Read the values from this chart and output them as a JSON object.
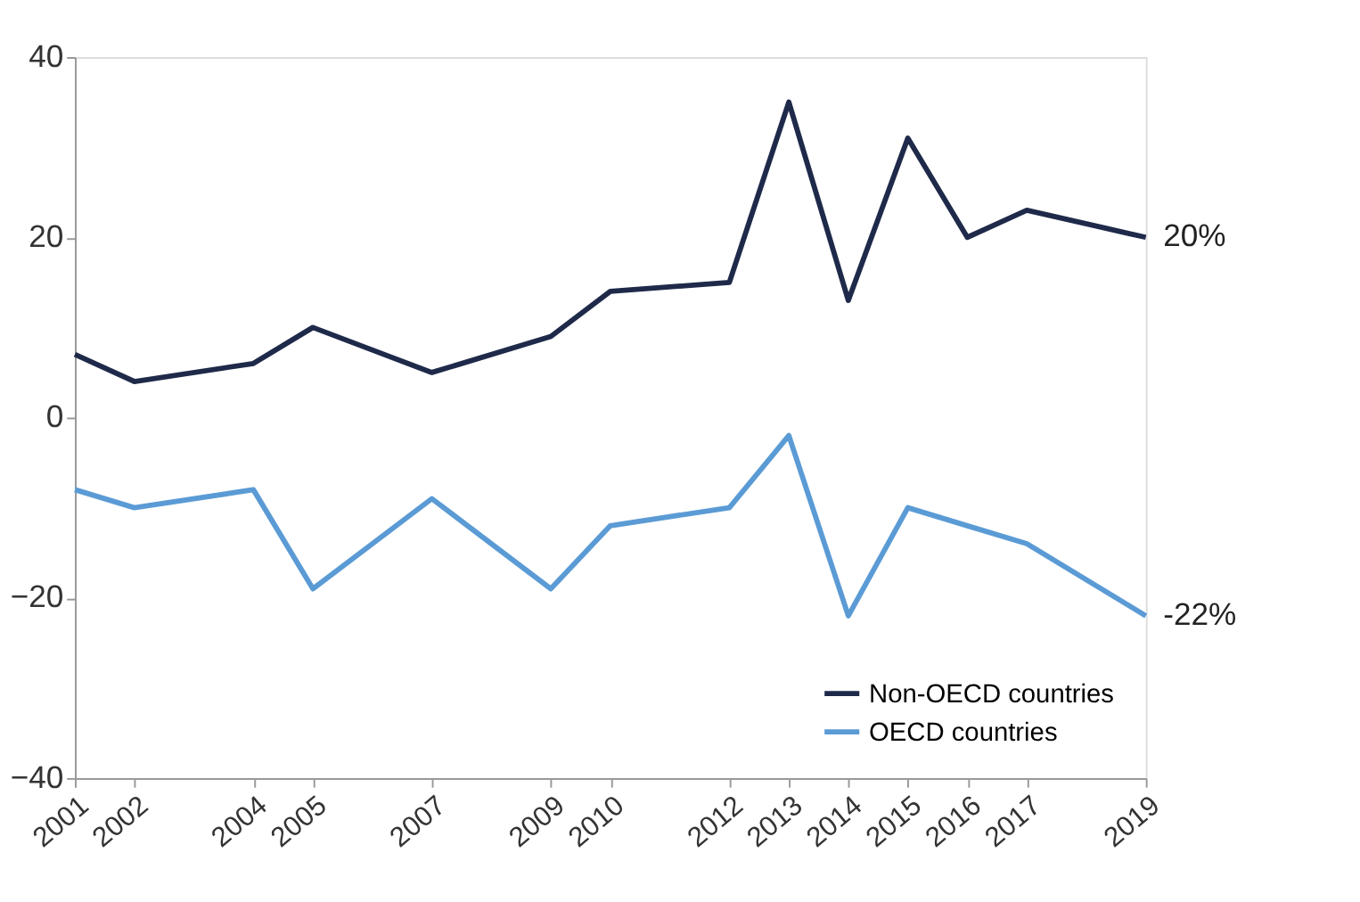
{
  "chart_data": {
    "type": "line",
    "x": [
      2001,
      2002,
      2004,
      2005,
      2007,
      2009,
      2010,
      2012,
      2013,
      2014,
      2015,
      2016,
      2017,
      2019
    ],
    "series": [
      {
        "name": "Non-OECD countries",
        "color": "#1f2a4a",
        "values": [
          7,
          4,
          6,
          10,
          5,
          9,
          14,
          15,
          35,
          13,
          31,
          20,
          23,
          20
        ]
      },
      {
        "name": "OECD countries",
        "color": "#5b9bd5",
        "values": [
          -8,
          -10,
          -8,
          -19,
          -9,
          -19,
          -12,
          -10,
          -2,
          -22,
          -10,
          -12,
          -14,
          -22
        ]
      }
    ],
    "xlim": [
      2001,
      2019
    ],
    "xticks": [
      2001,
      2002,
      2004,
      2005,
      2007,
      2009,
      2010,
      2012,
      2013,
      2014,
      2015,
      2016,
      2017,
      2019
    ],
    "ylim": [
      -40,
      40
    ],
    "yticks": [
      -40,
      -20,
      0,
      20,
      40
    ],
    "annotations": [
      {
        "text": "20%",
        "x": 2019,
        "y": 20
      },
      {
        "text": "-22%",
        "x": 2019,
        "y": -22
      }
    ],
    "grid": false,
    "legend": "bottom right",
    "marker": "none",
    "line_style": "solid"
  }
}
